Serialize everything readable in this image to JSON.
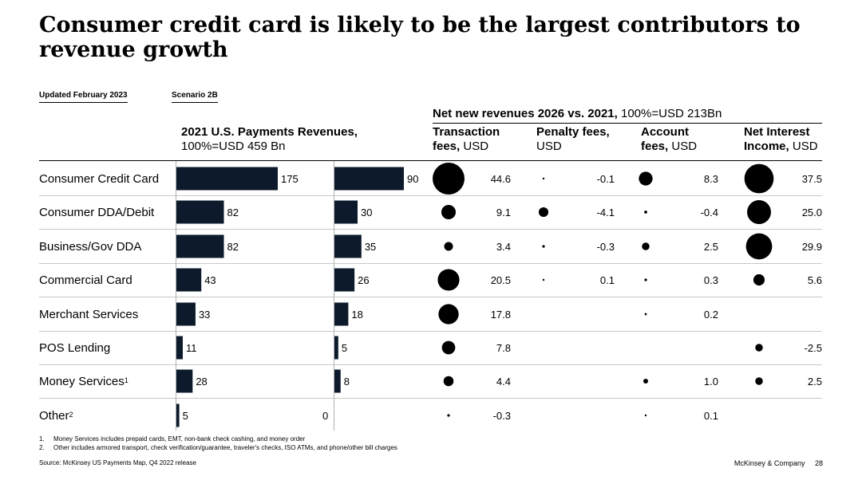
{
  "title": "Consumer credit card is likely to be the largest contributors to revenue growth",
  "tags": {
    "updated": "Updated February 2023",
    "scenario": "Scenario 2B"
  },
  "chart_data": {
    "type": "table",
    "title": "Consumer credit card is likely to be the largest contributors to revenue growth",
    "left_header": {
      "title": "2021 U.S. Payments Revenues,",
      "subtitle": "100%=USD 459 Bn"
    },
    "right_header": {
      "title": "Net new revenues 2026 vs. 2021,",
      "subtitle": "100%=USD 213Bn"
    },
    "columns": [
      {
        "key": "transaction",
        "label": "Transaction",
        "label2": "fees,",
        "unit": "USD"
      },
      {
        "key": "penalty",
        "label": "Penalty fees,",
        "label2": "",
        "unit": "USD"
      },
      {
        "key": "account",
        "label": "Account",
        "label2": "fees,",
        "unit": "USD"
      },
      {
        "key": "interest",
        "label": "Net Interest",
        "label2": "Income,",
        "unit": "USD"
      }
    ],
    "rows": [
      {
        "label": "Consumer Credit Card",
        "sup": "",
        "revenue_2021": 175,
        "net_new": 90,
        "transaction": 44.6,
        "penalty": -0.1,
        "account": 8.3,
        "interest": 37.5
      },
      {
        "label": "Consumer DDA/Debit",
        "sup": "",
        "revenue_2021": 82,
        "net_new": 30,
        "transaction": 9.1,
        "penalty": -4.1,
        "account": -0.4,
        "interest": 25.0
      },
      {
        "label": "Business/Gov DDA",
        "sup": "",
        "revenue_2021": 82,
        "net_new": 35,
        "transaction": 3.4,
        "penalty": -0.3,
        "account": 2.5,
        "interest": 29.9
      },
      {
        "label": "Commercial Card",
        "sup": "",
        "revenue_2021": 43,
        "net_new": 26,
        "transaction": 20.5,
        "penalty": 0.1,
        "account": 0.3,
        "interest": 5.6
      },
      {
        "label": "Merchant Services",
        "sup": "",
        "revenue_2021": 33,
        "net_new": 18,
        "transaction": 17.8,
        "penalty": null,
        "account": 0.2,
        "interest": null
      },
      {
        "label": "POS Lending",
        "sup": "",
        "revenue_2021": 11,
        "net_new": 5,
        "transaction": 7.8,
        "penalty": null,
        "account": null,
        "interest": -2.5
      },
      {
        "label": "Money Services",
        "sup": "1",
        "revenue_2021": 28,
        "net_new": 8,
        "transaction": 4.4,
        "penalty": null,
        "account": 1.0,
        "interest": 2.5
      },
      {
        "label": "Other",
        "sup": "2",
        "revenue_2021": 5,
        "net_new": 0,
        "transaction": -0.3,
        "penalty": null,
        "account": 0.1,
        "interest": null
      }
    ],
    "value_labels": [
      [
        "44.6",
        "-0.1",
        "8.3",
        "37.5"
      ],
      [
        "9.1",
        "-4.1",
        "-0.4",
        "25.0"
      ],
      [
        "3.4",
        "-0.3",
        "2.5",
        "29.9"
      ],
      [
        "20.5",
        "0.1",
        "0.3",
        "5.6"
      ],
      [
        "17.8",
        "",
        "0.2",
        ""
      ],
      [
        "7.8",
        "",
        "",
        "-2.5"
      ],
      [
        "4.4",
        "",
        "1.0",
        "2.5"
      ],
      [
        "-0.3",
        "",
        "0.1",
        ""
      ]
    ]
  },
  "footnotes": [
    {
      "num": "1.",
      "text": "Money Services includes prepaid cards, EMT, non-bank check cashing, and money order"
    },
    {
      "num": "2.",
      "text": "Other includes armored transport, check verification/guarantee, traveler's checks, ISO ATMs, and phone/other bill charges"
    }
  ],
  "source": "Source: McKinsey US Payments Map, Q4 2022 release",
  "brand": "McKinsey & Company",
  "page_number": "28",
  "colors": {
    "bar": "#0c1a2b",
    "bubble": "#000000",
    "rule": "#c8c8c8"
  }
}
